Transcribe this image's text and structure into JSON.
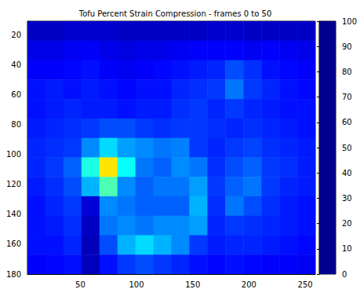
{
  "chart_data": {
    "type": "heatmap",
    "title": "Tofu Percent Strain Compression - frames 0 to 50",
    "x_edges": [
      3,
      19,
      35,
      51,
      67,
      83,
      99,
      115,
      131,
      147,
      163,
      179,
      195,
      211,
      227,
      243,
      259
    ],
    "y_edges": [
      11,
      24,
      37,
      50,
      63,
      76,
      89,
      102,
      115,
      128,
      141,
      154,
      167,
      180
    ],
    "values": [
      [
        6,
        6,
        7,
        7,
        7,
        6,
        6,
        6,
        6,
        6,
        7,
        7,
        6,
        6,
        6,
        6
      ],
      [
        10,
        10,
        11,
        12,
        10,
        9,
        10,
        10,
        11,
        12,
        12,
        12,
        11,
        12,
        11,
        10
      ],
      [
        12,
        12,
        13,
        14,
        12,
        11,
        12,
        13,
        14,
        15,
        16,
        20,
        17,
        14,
        13,
        12
      ],
      [
        14,
        15,
        14,
        15,
        14,
        13,
        14,
        14,
        16,
        17,
        18,
        24,
        18,
        16,
        14,
        13
      ],
      [
        14,
        15,
        16,
        15,
        15,
        14,
        15,
        15,
        17,
        18,
        16,
        18,
        16,
        15,
        14,
        14
      ],
      [
        15,
        16,
        17,
        18,
        20,
        20,
        18,
        17,
        18,
        18,
        17,
        16,
        17,
        16,
        15,
        14
      ],
      [
        16,
        17,
        18,
        26,
        34,
        28,
        26,
        24,
        25,
        18,
        16,
        18,
        19,
        17,
        16,
        15
      ],
      [
        16,
        18,
        22,
        40,
        65,
        38,
        24,
        22,
        26,
        24,
        17,
        20,
        22,
        18,
        17,
        15
      ],
      [
        15,
        17,
        20,
        30,
        45,
        26,
        22,
        24,
        24,
        28,
        18,
        22,
        24,
        18,
        16,
        15
      ],
      [
        14,
        16,
        18,
        8,
        26,
        24,
        22,
        22,
        22,
        30,
        17,
        24,
        20,
        17,
        15,
        14
      ],
      [
        14,
        15,
        17,
        6,
        24,
        26,
        24,
        26,
        26,
        28,
        16,
        18,
        17,
        16,
        15,
        14
      ],
      [
        14,
        14,
        16,
        5,
        20,
        30,
        34,
        30,
        26,
        18,
        15,
        16,
        16,
        15,
        14,
        13
      ],
      [
        12,
        13,
        14,
        5,
        14,
        18,
        20,
        18,
        16,
        14,
        13,
        14,
        13,
        12,
        12,
        11
      ]
    ],
    "xlim": [
      3,
      259
    ],
    "ylim": [
      11,
      180
    ],
    "xticks": [
      50,
      100,
      150,
      200,
      250
    ],
    "yticks": [
      20,
      40,
      60,
      80,
      100,
      120,
      140,
      160,
      180
    ],
    "colorbar_range": [
      0,
      100
    ],
    "colorbar_ticks": [
      0,
      10,
      20,
      30,
      40,
      50,
      60,
      70,
      80,
      90,
      100
    ]
  }
}
